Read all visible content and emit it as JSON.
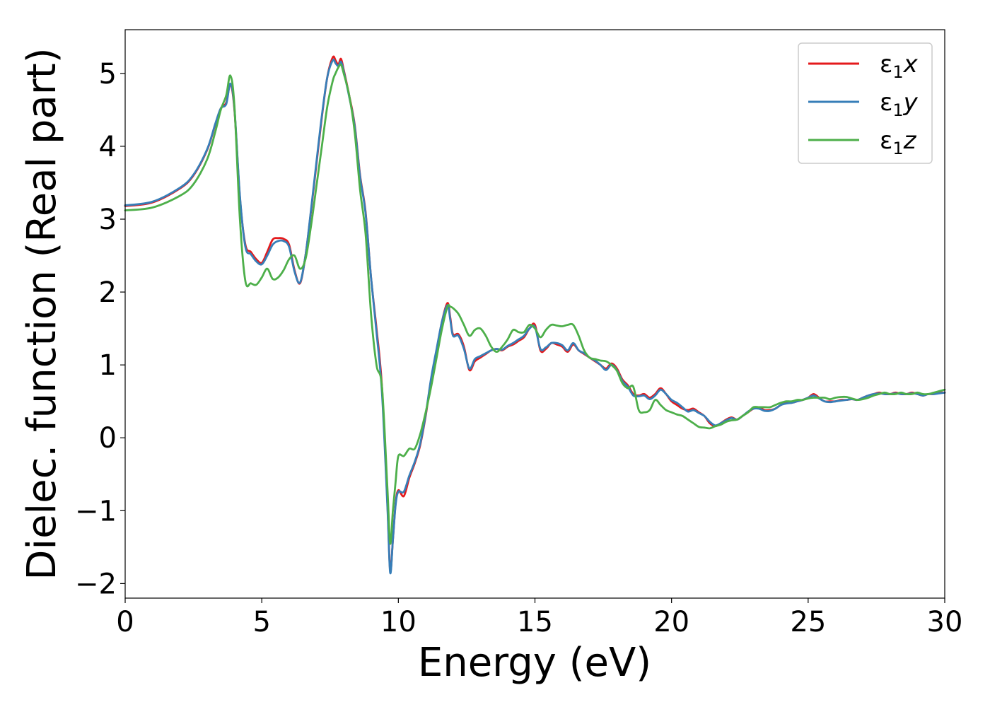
{
  "chart_data": {
    "type": "line",
    "xlabel": "Energy (eV)",
    "ylabel": "Dielec. function (Real part)",
    "xlim": [
      0,
      30
    ],
    "ylim": [
      -2.2,
      5.6
    ],
    "xticks": [
      0,
      5,
      10,
      15,
      20,
      25,
      30
    ],
    "xtick_labels": [
      "0",
      "5",
      "10",
      "15",
      "20",
      "25",
      "30"
    ],
    "yticks": [
      -2,
      -1,
      0,
      1,
      2,
      3,
      4,
      5
    ],
    "ytick_labels": [
      "−2",
      "−1",
      "0",
      "1",
      "2",
      "3",
      "4",
      "5"
    ],
    "grid": false,
    "legend_position": "top-right",
    "series": [
      {
        "name": "ε₁x",
        "legend_base": "ε",
        "legend_sub": "1",
        "legend_var": "x",
        "color": "#e41a1c",
        "x": [
          0,
          1,
          2,
          2.5,
          3,
          3.3,
          3.5,
          3.7,
          3.85,
          4.0,
          4.2,
          4.4,
          4.6,
          4.8,
          5.0,
          5.2,
          5.4,
          5.6,
          5.8,
          6.0,
          6.2,
          6.4,
          6.6,
          6.8,
          7.0,
          7.2,
          7.4,
          7.6,
          7.7,
          7.8,
          7.9,
          8.0,
          8.2,
          8.4,
          8.6,
          8.8,
          9.0,
          9.2,
          9.4,
          9.6,
          9.7,
          9.8,
          9.9,
          10.0,
          10.2,
          10.4,
          10.6,
          10.8,
          11.0,
          11.2,
          11.4,
          11.6,
          11.8,
          11.9,
          12.0,
          12.2,
          12.4,
          12.6,
          12.8,
          13.0,
          13.2,
          13.4,
          13.6,
          13.8,
          14.0,
          14.2,
          14.4,
          14.6,
          14.8,
          15.0,
          15.2,
          15.4,
          15.6,
          15.8,
          16.0,
          16.2,
          16.4,
          16.6,
          16.8,
          17.0,
          17.2,
          17.4,
          17.6,
          17.8,
          18.0,
          18.2,
          18.4,
          18.6,
          18.8,
          19.0,
          19.2,
          19.4,
          19.6,
          19.8,
          20.0,
          20.2,
          20.4,
          20.6,
          20.8,
          21.0,
          21.2,
          21.4,
          21.6,
          21.8,
          22.0,
          22.2,
          22.4,
          22.6,
          22.8,
          23.0,
          23.2,
          23.4,
          23.6,
          23.8,
          24.0,
          24.2,
          24.4,
          24.6,
          24.8,
          25.0,
          25.2,
          25.4,
          25.6,
          25.8,
          26.0,
          26.2,
          26.4,
          26.6,
          26.8,
          27.0,
          27.2,
          27.4,
          27.6,
          27.8,
          28.0,
          28.2,
          28.4,
          28.6,
          28.8,
          29.0,
          29.2,
          29.4,
          29.6,
          29.8,
          30.0
        ],
        "y": [
          3.18,
          3.23,
          3.42,
          3.6,
          3.95,
          4.3,
          4.52,
          4.6,
          4.85,
          4.5,
          3.3,
          2.65,
          2.55,
          2.45,
          2.4,
          2.55,
          2.72,
          2.74,
          2.73,
          2.65,
          2.3,
          2.12,
          2.5,
          3.1,
          3.75,
          4.4,
          4.95,
          5.22,
          5.18,
          5.12,
          5.2,
          5.05,
          4.7,
          4.3,
          3.6,
          3.1,
          2.2,
          1.5,
          0.7,
          -0.9,
          -1.82,
          -1.4,
          -0.9,
          -0.72,
          -0.8,
          -0.55,
          -0.35,
          -0.1,
          0.3,
          0.8,
          1.2,
          1.6,
          1.85,
          1.65,
          1.42,
          1.42,
          1.25,
          0.93,
          1.05,
          1.1,
          1.15,
          1.2,
          1.22,
          1.2,
          1.25,
          1.28,
          1.33,
          1.38,
          1.5,
          1.55,
          1.2,
          1.22,
          1.3,
          1.28,
          1.25,
          1.18,
          1.28,
          1.2,
          1.15,
          1.1,
          1.05,
          1.0,
          0.95,
          1.02,
          0.95,
          0.8,
          0.72,
          0.6,
          0.58,
          0.6,
          0.55,
          0.6,
          0.68,
          0.6,
          0.5,
          0.45,
          0.4,
          0.38,
          0.4,
          0.35,
          0.3,
          0.2,
          0.16,
          0.2,
          0.25,
          0.28,
          0.25,
          0.3,
          0.35,
          0.4,
          0.42,
          0.38,
          0.38,
          0.4,
          0.45,
          0.48,
          0.48,
          0.5,
          0.52,
          0.55,
          0.6,
          0.55,
          0.5,
          0.5,
          0.5,
          0.52,
          0.52,
          0.53,
          0.52,
          0.55,
          0.58,
          0.6,
          0.62,
          0.6,
          0.6,
          0.62,
          0.6,
          0.6,
          0.62,
          0.6,
          0.58,
          0.6,
          0.6,
          0.62,
          0.62
        ]
      },
      {
        "name": "ε₁y",
        "legend_base": "ε",
        "legend_sub": "1",
        "legend_var": "y",
        "color": "#377eb8",
        "x": [
          0,
          1,
          2,
          2.5,
          3,
          3.3,
          3.5,
          3.7,
          3.85,
          4.0,
          4.2,
          4.4,
          4.6,
          4.8,
          5.0,
          5.2,
          5.4,
          5.6,
          5.8,
          6.0,
          6.2,
          6.4,
          6.6,
          6.8,
          7.0,
          7.2,
          7.4,
          7.6,
          7.7,
          7.8,
          7.9,
          8.0,
          8.2,
          8.4,
          8.6,
          8.8,
          9.0,
          9.2,
          9.4,
          9.6,
          9.7,
          9.8,
          9.9,
          10.0,
          10.2,
          10.4,
          10.6,
          10.8,
          11.0,
          11.2,
          11.4,
          11.6,
          11.8,
          11.9,
          12.0,
          12.2,
          12.4,
          12.6,
          12.8,
          13.0,
          13.2,
          13.4,
          13.6,
          13.8,
          14.0,
          14.2,
          14.4,
          14.6,
          14.8,
          15.0,
          15.2,
          15.4,
          15.6,
          15.8,
          16.0,
          16.2,
          16.4,
          16.6,
          16.8,
          17.0,
          17.2,
          17.4,
          17.6,
          17.8,
          18.0,
          18.2,
          18.4,
          18.6,
          18.8,
          19.0,
          19.2,
          19.4,
          19.6,
          19.8,
          20.0,
          20.2,
          20.4,
          20.6,
          20.8,
          21.0,
          21.2,
          21.4,
          21.6,
          21.8,
          22.0,
          22.2,
          22.4,
          22.6,
          22.8,
          23.0,
          23.2,
          23.4,
          23.6,
          23.8,
          24.0,
          24.2,
          24.4,
          24.6,
          24.8,
          25.0,
          25.2,
          25.4,
          25.6,
          25.8,
          26.0,
          26.2,
          26.4,
          26.6,
          26.8,
          27.0,
          27.2,
          27.4,
          27.6,
          27.8,
          28.0,
          28.2,
          28.4,
          28.6,
          28.8,
          29.0,
          29.2,
          29.4,
          29.6,
          29.8,
          30.0
        ],
        "y": [
          3.19,
          3.24,
          3.43,
          3.61,
          3.96,
          4.31,
          4.52,
          4.58,
          4.86,
          4.52,
          3.32,
          2.62,
          2.52,
          2.42,
          2.38,
          2.5,
          2.65,
          2.7,
          2.7,
          2.62,
          2.28,
          2.13,
          2.5,
          3.12,
          3.78,
          4.42,
          4.95,
          5.18,
          5.14,
          5.1,
          5.16,
          5.03,
          4.68,
          4.28,
          3.58,
          3.08,
          2.2,
          1.45,
          0.62,
          -0.95,
          -1.85,
          -1.4,
          -0.92,
          -0.74,
          -0.74,
          -0.52,
          -0.33,
          -0.08,
          0.32,
          0.82,
          1.22,
          1.6,
          1.82,
          1.62,
          1.4,
          1.4,
          1.22,
          0.95,
          1.08,
          1.12,
          1.16,
          1.2,
          1.22,
          1.21,
          1.26,
          1.3,
          1.35,
          1.4,
          1.5,
          1.52,
          1.22,
          1.24,
          1.3,
          1.3,
          1.27,
          1.2,
          1.3,
          1.2,
          1.16,
          1.1,
          1.06,
          1.0,
          0.93,
          1.0,
          0.93,
          0.78,
          0.7,
          0.58,
          0.57,
          0.58,
          0.53,
          0.58,
          0.66,
          0.6,
          0.52,
          0.48,
          0.42,
          0.36,
          0.38,
          0.34,
          0.3,
          0.22,
          0.17,
          0.2,
          0.24,
          0.27,
          0.25,
          0.3,
          0.36,
          0.4,
          0.4,
          0.37,
          0.37,
          0.4,
          0.45,
          0.47,
          0.48,
          0.5,
          0.52,
          0.55,
          0.58,
          0.54,
          0.5,
          0.49,
          0.5,
          0.51,
          0.52,
          0.53,
          0.52,
          0.55,
          0.58,
          0.6,
          0.61,
          0.6,
          0.6,
          0.61,
          0.6,
          0.6,
          0.61,
          0.6,
          0.58,
          0.6,
          0.6,
          0.61,
          0.62
        ]
      },
      {
        "name": "ε₁z",
        "legend_base": "ε",
        "legend_sub": "1",
        "legend_var": "z",
        "color": "#4daf4a",
        "x": [
          0,
          1,
          2,
          2.5,
          3,
          3.3,
          3.5,
          3.7,
          3.85,
          4.0,
          4.2,
          4.4,
          4.6,
          4.8,
          5.0,
          5.2,
          5.4,
          5.6,
          5.8,
          6.0,
          6.2,
          6.4,
          6.6,
          6.8,
          7.0,
          7.2,
          7.4,
          7.6,
          7.7,
          7.8,
          7.9,
          8.0,
          8.2,
          8.4,
          8.6,
          8.8,
          9.0,
          9.2,
          9.4,
          9.6,
          9.7,
          9.8,
          9.9,
          10.0,
          10.2,
          10.4,
          10.6,
          10.8,
          11.0,
          11.2,
          11.4,
          11.6,
          11.8,
          11.9,
          12.0,
          12.2,
          12.4,
          12.6,
          12.8,
          13.0,
          13.2,
          13.4,
          13.6,
          13.8,
          14.0,
          14.2,
          14.4,
          14.6,
          14.8,
          15.0,
          15.2,
          15.4,
          15.6,
          15.8,
          16.0,
          16.2,
          16.4,
          16.6,
          16.8,
          17.0,
          17.2,
          17.4,
          17.6,
          17.8,
          18.0,
          18.2,
          18.4,
          18.6,
          18.8,
          19.0,
          19.2,
          19.4,
          19.6,
          19.8,
          20.0,
          20.2,
          20.4,
          20.6,
          20.8,
          21.0,
          21.2,
          21.4,
          21.6,
          21.8,
          22.0,
          22.2,
          22.4,
          22.6,
          22.8,
          23.0,
          23.2,
          23.4,
          23.6,
          23.8,
          24.0,
          24.2,
          24.4,
          24.6,
          24.8,
          25.0,
          25.2,
          25.4,
          25.6,
          25.8,
          26.0,
          26.2,
          26.4,
          26.6,
          26.8,
          27.0,
          27.2,
          27.4,
          27.6,
          27.8,
          28.0,
          28.2,
          28.4,
          28.6,
          28.8,
          29.0,
          29.2,
          29.4,
          29.6,
          29.8,
          30.0
        ],
        "y": [
          3.12,
          3.16,
          3.32,
          3.48,
          3.82,
          4.2,
          4.5,
          4.7,
          4.97,
          4.55,
          3.0,
          2.15,
          2.12,
          2.1,
          2.2,
          2.32,
          2.18,
          2.2,
          2.3,
          2.45,
          2.5,
          2.32,
          2.45,
          2.9,
          3.45,
          4.0,
          4.55,
          4.9,
          5.0,
          5.08,
          5.12,
          5.0,
          4.7,
          4.2,
          3.4,
          2.8,
          1.7,
          1.0,
          0.7,
          -0.7,
          -1.45,
          -1.0,
          -0.6,
          -0.25,
          -0.25,
          -0.15,
          -0.15,
          0.05,
          0.35,
          0.7,
          1.1,
          1.5,
          1.8,
          1.8,
          1.78,
          1.7,
          1.55,
          1.4,
          1.48,
          1.5,
          1.4,
          1.25,
          1.18,
          1.25,
          1.35,
          1.48,
          1.45,
          1.45,
          1.55,
          1.5,
          1.38,
          1.48,
          1.55,
          1.54,
          1.53,
          1.55,
          1.55,
          1.4,
          1.2,
          1.1,
          1.08,
          1.06,
          1.05,
          1.0,
          0.92,
          0.75,
          0.68,
          0.7,
          0.38,
          0.35,
          0.38,
          0.52,
          0.45,
          0.38,
          0.35,
          0.32,
          0.3,
          0.25,
          0.2,
          0.15,
          0.14,
          0.13,
          0.16,
          0.18,
          0.22,
          0.24,
          0.25,
          0.3,
          0.35,
          0.42,
          0.42,
          0.42,
          0.42,
          0.45,
          0.48,
          0.5,
          0.5,
          0.52,
          0.52,
          0.54,
          0.55,
          0.55,
          0.55,
          0.53,
          0.55,
          0.56,
          0.56,
          0.54,
          0.52,
          0.53,
          0.55,
          0.58,
          0.6,
          0.62,
          0.6,
          0.6,
          0.62,
          0.6,
          0.6,
          0.62,
          0.6,
          0.6,
          0.62,
          0.64,
          0.66
        ]
      }
    ]
  }
}
